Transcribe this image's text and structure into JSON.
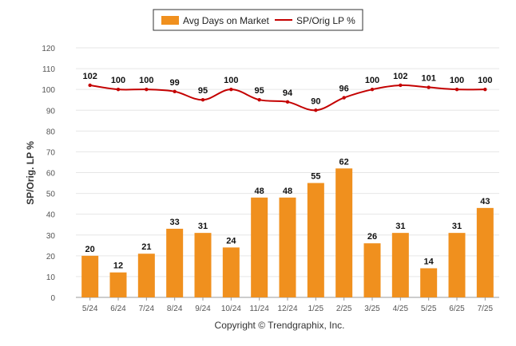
{
  "chart_data": {
    "type": "bar",
    "categories": [
      "5/24",
      "6/24",
      "7/24",
      "8/24",
      "9/24",
      "10/24",
      "11/24",
      "12/24",
      "1/25",
      "2/25",
      "3/25",
      "4/25",
      "5/25",
      "6/25",
      "7/25"
    ],
    "series": [
      {
        "name": "Avg Days on Market",
        "type": "bar",
        "color": "#f0901e",
        "values": [
          20,
          12,
          21,
          33,
          31,
          24,
          48,
          48,
          55,
          62,
          26,
          31,
          14,
          31,
          43
        ]
      },
      {
        "name": "SP/Orig LP %",
        "type": "line",
        "color": "#c40000",
        "values": [
          102,
          100,
          100,
          99,
          95,
          100,
          95,
          94,
          90,
          96,
          100,
          102,
          101,
          100,
          100
        ]
      }
    ],
    "ylabel": "SP/Orig. LP %",
    "xlabel": "",
    "ylim": [
      0,
      120
    ],
    "yticks": [
      0,
      10,
      20,
      30,
      40,
      50,
      60,
      70,
      80,
      90,
      100,
      110,
      120
    ],
    "grid": true,
    "legend_position": "top-center"
  },
  "footer": {
    "copyright": "Copyright © Trendgraphix, Inc."
  }
}
